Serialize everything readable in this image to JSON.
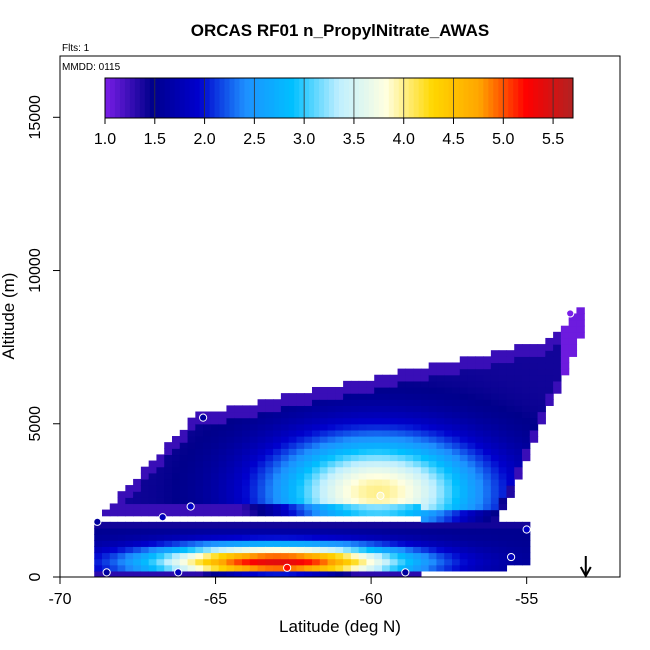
{
  "chart_data": {
    "type": "heatmap",
    "title": "ORCAS RF01 n_PropylNitrate_AWAS",
    "subtitle_flights": "Flts: 1",
    "subtitle_date": "MMDD: 0115",
    "xlabel": "Latitude (deg N)",
    "ylabel": "Altitude (m)",
    "xlim": [
      -70,
      -52
    ],
    "ylim": [
      0,
      17000
    ],
    "x_ticks": [
      -70,
      -65,
      -60,
      -55
    ],
    "x_tick_labels": [
      "-70",
      "-65",
      "-60",
      "-55"
    ],
    "y_ticks": [
      0,
      5000,
      10000,
      15000
    ],
    "y_tick_labels": [
      "0",
      "5000",
      "10000",
      "15000"
    ],
    "colorbar": {
      "range": [
        1.0,
        5.7
      ],
      "ticks": [
        1.0,
        1.5,
        2.0,
        2.5,
        3.0,
        3.5,
        4.0,
        4.5,
        5.0,
        5.5
      ],
      "tick_labels": [
        "1.0",
        "1.5",
        "2.0",
        "2.5",
        "3.0",
        "3.5",
        "4.0",
        "4.5",
        "5.0",
        "5.5"
      ],
      "colors": [
        "#7a1ee8",
        "#00008b",
        "#0000cd",
        "#1e90ff",
        "#00bfff",
        "#bfefff",
        "#ffffe0",
        "#ffd700",
        "#ffa500",
        "#ff0000",
        "#b22222"
      ]
    },
    "samples": [
      {
        "x": -68.8,
        "y": 1800,
        "value": 1.6
      },
      {
        "x": -68.5,
        "y": 150,
        "value": 1.6
      },
      {
        "x": -66.7,
        "y": 1950,
        "value": 1.8
      },
      {
        "x": -66.2,
        "y": 150,
        "value": 1.8
      },
      {
        "x": -65.8,
        "y": 2300,
        "value": 1.9
      },
      {
        "x": -65.4,
        "y": 5200,
        "value": 1.6
      },
      {
        "x": -62.7,
        "y": 300,
        "value": 5.2
      },
      {
        "x": -59.7,
        "y": 2650,
        "value": 3.9
      },
      {
        "x": -58.9,
        "y": 150,
        "value": 1.6
      },
      {
        "x": -55.5,
        "y": 650,
        "value": 1.8
      },
      {
        "x": -55.0,
        "y": 1550,
        "value": 1.9
      },
      {
        "x": -53.6,
        "y": 8600,
        "value": 1.0
      }
    ],
    "marker": {
      "x": -53.1,
      "direction": "down",
      "symbol": "arrow"
    },
    "grid": false
  }
}
